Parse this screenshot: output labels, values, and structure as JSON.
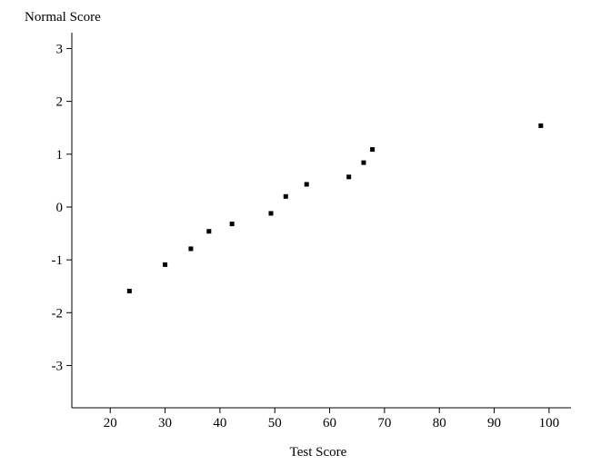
{
  "chart_data": {
    "type": "scatter",
    "title": "",
    "xlabel": "Test Score",
    "ylabel": "Normal Score",
    "xlim": [
      13,
      104
    ],
    "ylim": [
      -3.8,
      3.3
    ],
    "xticks": [
      20,
      30,
      40,
      50,
      60,
      70,
      80,
      90,
      100
    ],
    "yticks": [
      -3,
      -2,
      -1,
      0,
      1,
      2,
      3
    ],
    "grid": false,
    "legend": "none",
    "points": [
      {
        "x": 23.5,
        "y": -1.59
      },
      {
        "x": 30,
        "y": -1.09
      },
      {
        "x": 34.7,
        "y": -0.79
      },
      {
        "x": 38,
        "y": -0.46
      },
      {
        "x": 42.2,
        "y": -0.32
      },
      {
        "x": 49.3,
        "y": -0.12
      },
      {
        "x": 52,
        "y": 0.2
      },
      {
        "x": 55.8,
        "y": 0.43
      },
      {
        "x": 63.5,
        "y": 0.57
      },
      {
        "x": 66.2,
        "y": 0.84
      },
      {
        "x": 67.8,
        "y": 1.09
      },
      {
        "x": 98.5,
        "y": 1.54
      }
    ]
  }
}
